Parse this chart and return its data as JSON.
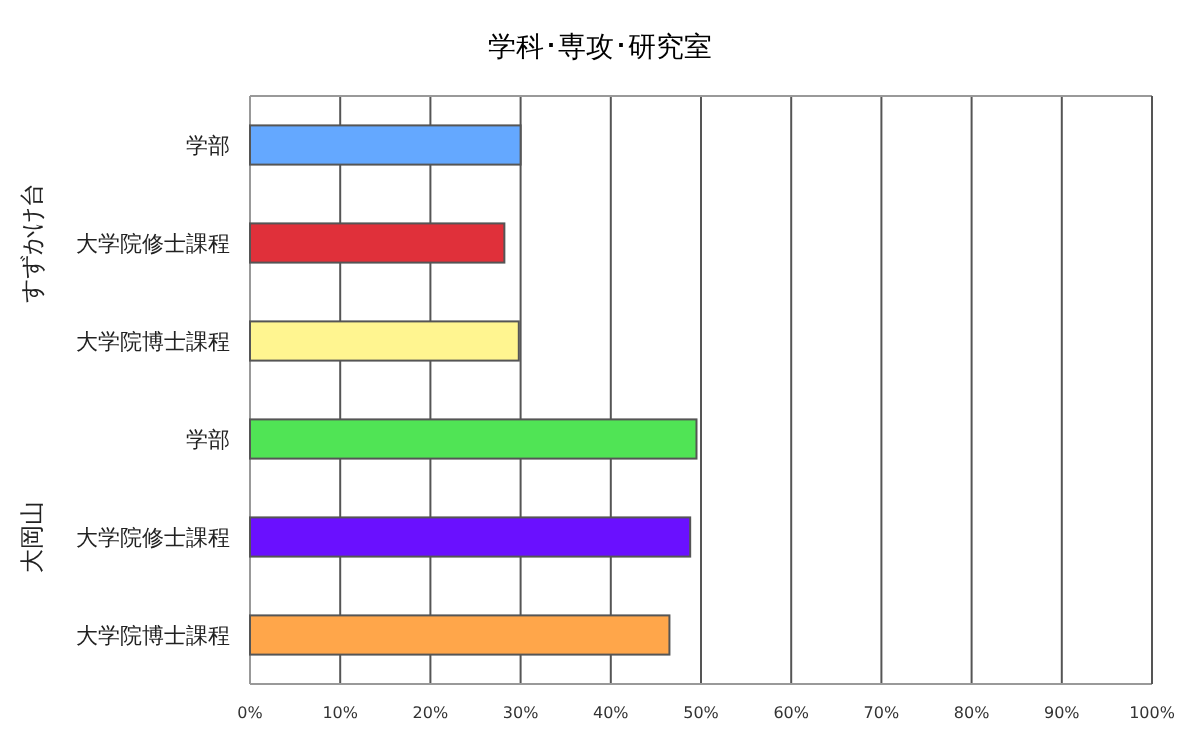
{
  "chart_data": {
    "type": "bar",
    "orientation": "horizontal",
    "title": "学科･専攻･研究室",
    "categories": [
      "学部",
      "大学院修士課程",
      "大学院博士課程",
      "学部",
      "大学院修士課程",
      "大学院博士課程"
    ],
    "values": [
      30.0,
      28.2,
      29.8,
      49.5,
      48.8,
      46.5
    ],
    "colors": [
      "#64a8ff",
      "#e0303a",
      "#fff590",
      "#50e455",
      "#6a10ff",
      "#ffa64a"
    ],
    "xlim": [
      0,
      100
    ],
    "xticks": [
      {
        "value": 0,
        "label": "0%"
      },
      {
        "value": 10,
        "label": "10%"
      },
      {
        "value": 20,
        "label": "20%"
      },
      {
        "value": 30,
        "label": "30%"
      },
      {
        "value": 40,
        "label": "40%"
      },
      {
        "value": 50,
        "label": "50%"
      },
      {
        "value": 60,
        "label": "60%"
      },
      {
        "value": 70,
        "label": "70%"
      },
      {
        "value": 80,
        "label": "80%"
      },
      {
        "value": 90,
        "label": "90%"
      },
      {
        "value": 100,
        "label": "100%"
      }
    ],
    "grid": "x",
    "annotations": [
      "すずかけ台",
      "大岡山"
    ]
  }
}
